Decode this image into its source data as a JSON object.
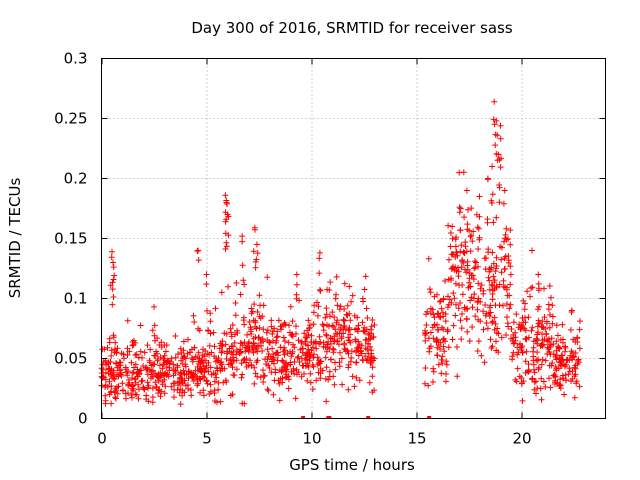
{
  "chart_data": {
    "type": "scatter",
    "title": "Day 300 of 2016, SRMTID for receiver sass",
    "xlabel": "GPS time / hours",
    "ylabel": "SRMTID / TECUs",
    "xlim": [
      0,
      24
    ],
    "ylim": [
      0,
      0.3
    ],
    "x_ticks": [
      0,
      5,
      10,
      15,
      20
    ],
    "x_tick_labels": [
      "0",
      "5",
      "10",
      "15",
      "20"
    ],
    "y_ticks": [
      0,
      0.05,
      0.1,
      0.15,
      0.2,
      0.25,
      0.3
    ],
    "y_tick_labels": [
      "0",
      "0.05",
      "0.1",
      "0.15",
      "0.2",
      "0.25",
      "0.3"
    ],
    "grid": true,
    "marker": "plus",
    "color": "#ff0000",
    "series_name": "SRMTID",
    "data_gap_hours": [
      13.0,
      15.3
    ],
    "zero_markers_x": [
      9.6,
      10.8,
      10.85,
      12.7,
      15.6
    ],
    "segments": [
      {
        "x_start": 0.0,
        "x_end": 2.5,
        "mean": 0.038,
        "spread": 0.014
      },
      {
        "x_start": 2.5,
        "x_end": 4.5,
        "mean": 0.04,
        "spread": 0.012
      },
      {
        "x_start": 4.5,
        "x_end": 6.0,
        "mean": 0.045,
        "spread": 0.015
      },
      {
        "x_start": 6.0,
        "x_end": 8.0,
        "mean": 0.06,
        "spread": 0.018
      },
      {
        "x_start": 8.0,
        "x_end": 10.5,
        "mean": 0.052,
        "spread": 0.016
      },
      {
        "x_start": 10.5,
        "x_end": 13.0,
        "mean": 0.062,
        "spread": 0.018
      },
      {
        "x_start": 15.4,
        "x_end": 16.5,
        "mean": 0.07,
        "spread": 0.02
      },
      {
        "x_start": 16.5,
        "x_end": 19.5,
        "mean": 0.11,
        "spread": 0.03
      },
      {
        "x_start": 19.5,
        "x_end": 21.5,
        "mean": 0.06,
        "spread": 0.02
      },
      {
        "x_start": 21.5,
        "x_end": 22.8,
        "mean": 0.045,
        "spread": 0.015
      }
    ],
    "peaks": [
      {
        "x": 0.5,
        "y": 0.139
      },
      {
        "x": 0.55,
        "y": 0.13
      },
      {
        "x": 2.5,
        "y": 0.093
      },
      {
        "x": 4.6,
        "y": 0.14
      },
      {
        "x": 5.0,
        "y": 0.12
      },
      {
        "x": 5.9,
        "y": 0.186
      },
      {
        "x": 5.95,
        "y": 0.18
      },
      {
        "x": 6.0,
        "y": 0.17
      },
      {
        "x": 6.7,
        "y": 0.152
      },
      {
        "x": 7.3,
        "y": 0.159
      },
      {
        "x": 7.4,
        "y": 0.145
      },
      {
        "x": 9.3,
        "y": 0.12
      },
      {
        "x": 10.4,
        "y": 0.138
      },
      {
        "x": 11.2,
        "y": 0.118
      },
      {
        "x": 11.8,
        "y": 0.11
      },
      {
        "x": 16.7,
        "y": 0.16
      },
      {
        "x": 17.1,
        "y": 0.175
      },
      {
        "x": 17.4,
        "y": 0.19
      },
      {
        "x": 18.0,
        "y": 0.185
      },
      {
        "x": 18.4,
        "y": 0.2
      },
      {
        "x": 18.6,
        "y": 0.21
      },
      {
        "x": 18.7,
        "y": 0.264
      },
      {
        "x": 18.8,
        "y": 0.248
      },
      {
        "x": 19.0,
        "y": 0.244
      },
      {
        "x": 18.9,
        "y": 0.22
      },
      {
        "x": 19.2,
        "y": 0.19
      },
      {
        "x": 20.5,
        "y": 0.14
      },
      {
        "x": 20.8,
        "y": 0.12
      },
      {
        "x": 21.3,
        "y": 0.095
      },
      {
        "x": 22.4,
        "y": 0.09
      }
    ],
    "n_points": 1500,
    "seed": 300
  }
}
